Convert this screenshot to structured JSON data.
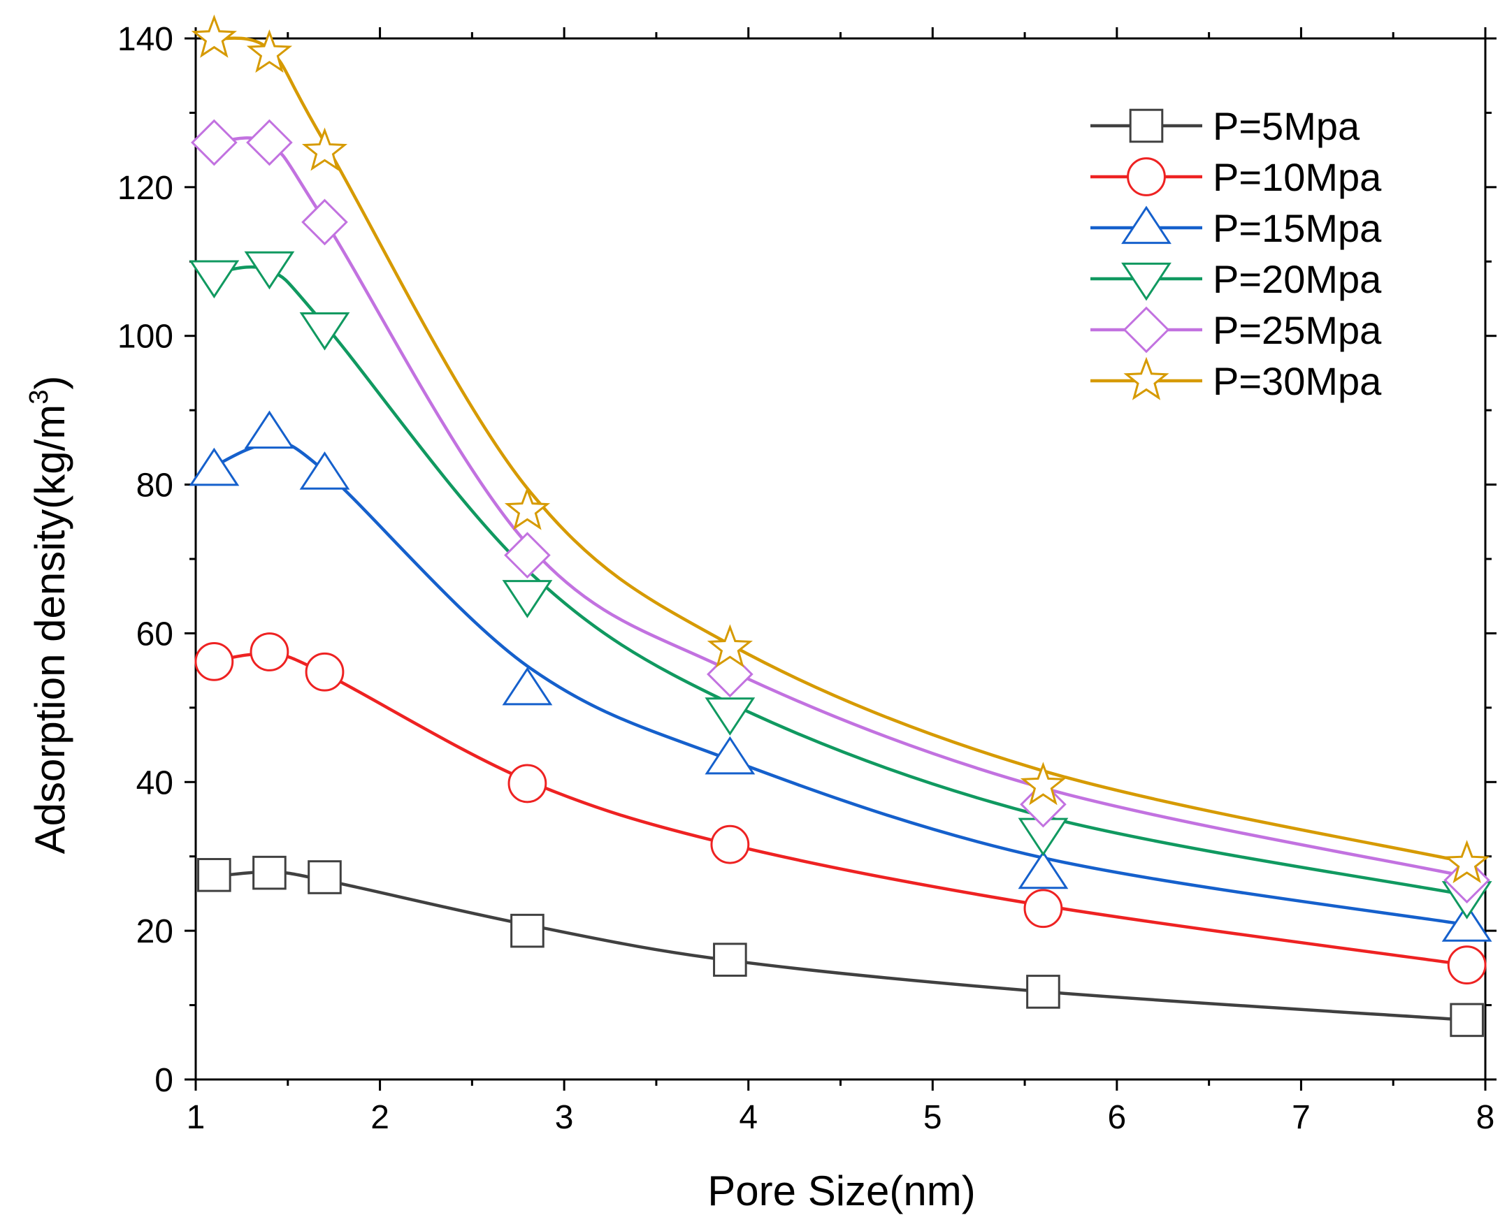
{
  "chart_data": {
    "type": "line",
    "title": "",
    "xlabel": "Pore Size(nm)",
    "ylabel_main": "Adsorption density(kg/m",
    "ylabel_sup": "3",
    "ylabel_close": ")",
    "xlim": [
      1,
      8
    ],
    "ylim": [
      0,
      140
    ],
    "xticks": [
      1,
      2,
      3,
      4,
      5,
      6,
      7,
      8
    ],
    "xtick_labels": [
      "1",
      "2",
      "3",
      "4",
      "5",
      "6",
      "7",
      "8"
    ],
    "yticks": [
      0,
      20,
      40,
      60,
      80,
      100,
      120,
      140
    ],
    "ytick_labels": [
      "0",
      "20",
      "40",
      "60",
      "80",
      "100",
      "120",
      "140"
    ],
    "grid": false,
    "legend_position": "top-right",
    "x": [
      1.1,
      1.4,
      1.7,
      2.8,
      3.9,
      5.6,
      7.9
    ],
    "series": [
      {
        "name": "P=5Mpa",
        "color": "#404040",
        "marker": "square",
        "values": [
          27.5,
          27.8,
          27.2,
          20.0,
          16.1,
          11.8,
          8.0
        ],
        "fit": [
          27.3,
          27.9,
          26.8,
          20.8,
          16.0,
          11.8,
          8.0
        ]
      },
      {
        "name": "P=10Mpa",
        "color": "#ee2222",
        "marker": "circle",
        "values": [
          56.2,
          57.5,
          54.8,
          39.8,
          31.6,
          23.0,
          15.4
        ],
        "fit": [
          56.3,
          57.2,
          54.6,
          40.2,
          31.6,
          23.4,
          15.4
        ]
      },
      {
        "name": "P=15Mpa",
        "color": "#1560cc",
        "marker": "triangle-up",
        "values": [
          82.0,
          87.0,
          81.5,
          52.5,
          43.2,
          27.8,
          20.7
        ],
        "fit": [
          82.5,
          85.4,
          81.8,
          55.6,
          43.0,
          29.8,
          20.8
        ]
      },
      {
        "name": "P=20Mpa",
        "color": "#109960",
        "marker": "triangle-down",
        "values": [
          108.0,
          109.2,
          101.0,
          65.0,
          49.2,
          33.0,
          24.5
        ],
        "fit": [
          108.5,
          108.8,
          101.5,
          68.5,
          50.6,
          35.4,
          24.8
        ]
      },
      {
        "name": "P=25Mpa",
        "color": "#c272e0",
        "marker": "diamond",
        "values": [
          126.0,
          126.0,
          115.3,
          70.5,
          54.5,
          37.0,
          26.8
        ],
        "fit": [
          126.0,
          125.8,
          115.5,
          72.0,
          55.0,
          39.2,
          27.3
        ]
      },
      {
        "name": "P=30Mpa",
        "color": "#d69a00",
        "marker": "star",
        "values": [
          140.0,
          138.0,
          124.8,
          76.5,
          58.0,
          39.5,
          29.0
        ],
        "fit": [
          140.0,
          138.5,
          126.0,
          79.5,
          58.5,
          41.5,
          29.2
        ]
      }
    ]
  }
}
